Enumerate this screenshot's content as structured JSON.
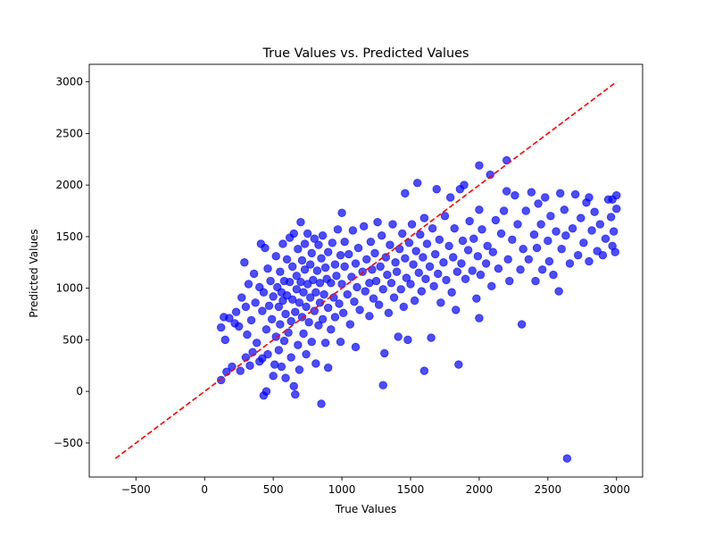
{
  "chart_data": {
    "type": "scatter",
    "title": "True Values vs. Predicted Values",
    "xlabel": "True Values",
    "ylabel": "Predicted Values",
    "xlim": [
      -840,
      3190
    ],
    "ylim": [
      -830,
      3170
    ],
    "xticks": [
      -500,
      0,
      500,
      1000,
      1500,
      2000,
      2500,
      3000
    ],
    "yticks": [
      -500,
      0,
      500,
      1000,
      1500,
      2000,
      2500,
      3000
    ],
    "xtick_labels": [
      "−500",
      "0",
      "500",
      "1000",
      "1500",
      "2000",
      "2500",
      "3000"
    ],
    "ytick_labels": [
      "−500",
      "0",
      "500",
      "1000",
      "1500",
      "2000",
      "2500",
      "3000"
    ],
    "grid": false,
    "point_color": "#0000ff",
    "point_opacity": 0.7,
    "reference_line": {
      "x": [
        -650,
        3000
      ],
      "y": [
        -650,
        3000
      ],
      "color": "#ff0000",
      "style": "dashed"
    },
    "series": [
      {
        "values": [
          [
            120,
            620
          ],
          [
            140,
            720
          ],
          [
            150,
            500
          ],
          [
            120,
            110
          ],
          [
            160,
            190
          ],
          [
            180,
            710
          ],
          [
            200,
            240
          ],
          [
            220,
            660
          ],
          [
            230,
            770
          ],
          [
            250,
            630
          ],
          [
            260,
            200
          ],
          [
            270,
            910
          ],
          [
            290,
            1250
          ],
          [
            300,
            820
          ],
          [
            300,
            330
          ],
          [
            310,
            550
          ],
          [
            320,
            1040
          ],
          [
            330,
            250
          ],
          [
            340,
            690
          ],
          [
            350,
            380
          ],
          [
            360,
            1140
          ],
          [
            370,
            860
          ],
          [
            380,
            470
          ],
          [
            400,
            1010
          ],
          [
            400,
            290
          ],
          [
            410,
            1430
          ],
          [
            420,
            780
          ],
          [
            420,
            320
          ],
          [
            430,
            960
          ],
          [
            430,
            -40
          ],
          [
            440,
            1390
          ],
          [
            450,
            0
          ],
          [
            450,
            600
          ],
          [
            460,
            1190
          ],
          [
            460,
            360
          ],
          [
            470,
            830
          ],
          [
            480,
            1070
          ],
          [
            490,
            700
          ],
          [
            500,
            150
          ],
          [
            500,
            920
          ],
          [
            510,
            260
          ],
          [
            520,
            1310
          ],
          [
            520,
            530
          ],
          [
            530,
            1010
          ],
          [
            540,
            820
          ],
          [
            540,
            400
          ],
          [
            550,
            1160
          ],
          [
            550,
            650
          ],
          [
            560,
            960
          ],
          [
            560,
            240
          ],
          [
            570,
            1430
          ],
          [
            570,
            880
          ],
          [
            580,
            1070
          ],
          [
            580,
            490
          ],
          [
            590,
            130
          ],
          [
            590,
            750
          ],
          [
            600,
            1280
          ],
          [
            600,
            930
          ],
          [
            610,
            570
          ],
          [
            620,
            1490
          ],
          [
            620,
            1060
          ],
          [
            630,
            680
          ],
          [
            630,
            330
          ],
          [
            640,
            1210
          ],
          [
            640,
            890
          ],
          [
            650,
            50
          ],
          [
            650,
            1530
          ],
          [
            660,
            -30
          ],
          [
            660,
            770
          ],
          [
            670,
            1120
          ],
          [
            670,
            990
          ],
          [
            680,
            450
          ],
          [
            680,
            1380
          ],
          [
            690,
            860
          ],
          [
            690,
            210
          ],
          [
            700,
            1060
          ],
          [
            700,
            1640
          ],
          [
            710,
            720
          ],
          [
            710,
            1270
          ],
          [
            720,
            960
          ],
          [
            720,
            560
          ],
          [
            730,
            1180
          ],
          [
            730,
            1430
          ],
          [
            740,
            820
          ],
          [
            740,
            360
          ],
          [
            750,
            1040
          ],
          [
            750,
            1530
          ],
          [
            760,
            670
          ],
          [
            770,
            1230
          ],
          [
            770,
            910
          ],
          [
            780,
            480
          ],
          [
            780,
            1340
          ],
          [
            790,
            1080
          ],
          [
            800,
            780
          ],
          [
            800,
            1480
          ],
          [
            810,
            270
          ],
          [
            810,
            960
          ],
          [
            820,
            1170
          ],
          [
            830,
            640
          ],
          [
            830,
            1420
          ],
          [
            840,
            1050
          ],
          [
            840,
            860
          ],
          [
            850,
            -120
          ],
          [
            850,
            1290
          ],
          [
            860,
            700
          ],
          [
            860,
            1510
          ],
          [
            870,
            940
          ],
          [
            880,
            1200
          ],
          [
            880,
            470
          ],
          [
            890,
            1090
          ],
          [
            900,
            810
          ],
          [
            900,
            1350
          ],
          [
            900,
            230
          ],
          [
            920,
            1050
          ],
          [
            920,
            600
          ],
          [
            930,
            1440
          ],
          [
            940,
            910
          ],
          [
            950,
            1230
          ],
          [
            950,
            720
          ],
          [
            960,
            1120
          ],
          [
            970,
            1570
          ],
          [
            980,
            850
          ],
          [
            990,
            1320
          ],
          [
            990,
            480
          ],
          [
            1000,
            1040
          ],
          [
            1000,
            1730
          ],
          [
            1010,
            760
          ],
          [
            1020,
            1210
          ],
          [
            1020,
            1450
          ],
          [
            1040,
            940
          ],
          [
            1050,
            1330
          ],
          [
            1060,
            650
          ],
          [
            1070,
            1110
          ],
          [
            1080,
            1560
          ],
          [
            1090,
            870
          ],
          [
            1100,
            1240
          ],
          [
            1100,
            430
          ],
          [
            1110,
            1010
          ],
          [
            1120,
            1390
          ],
          [
            1130,
            790
          ],
          [
            1150,
            1160
          ],
          [
            1160,
            1600
          ],
          [
            1170,
            970
          ],
          [
            1180,
            1280
          ],
          [
            1200,
            730
          ],
          [
            1200,
            1050
          ],
          [
            1210,
            1450
          ],
          [
            1220,
            1180
          ],
          [
            1230,
            900
          ],
          [
            1240,
            1340
          ],
          [
            1250,
            1070
          ],
          [
            1260,
            1640
          ],
          [
            1270,
            840
          ],
          [
            1280,
            1210
          ],
          [
            1290,
            1510
          ],
          [
            1300,
            60
          ],
          [
            1300,
            990
          ],
          [
            1310,
            370
          ],
          [
            1320,
            1300
          ],
          [
            1330,
            1130
          ],
          [
            1340,
            760
          ],
          [
            1350,
            1420
          ],
          [
            1360,
            1050
          ],
          [
            1370,
            1620
          ],
          [
            1380,
            910
          ],
          [
            1390,
            1250
          ],
          [
            1400,
            1160
          ],
          [
            1410,
            530
          ],
          [
            1420,
            1380
          ],
          [
            1430,
            990
          ],
          [
            1440,
            1530
          ],
          [
            1450,
            820
          ],
          [
            1460,
            1290
          ],
          [
            1460,
            1920
          ],
          [
            1470,
            1100
          ],
          [
            1480,
            500
          ],
          [
            1490,
            1440
          ],
          [
            1500,
            1040
          ],
          [
            1510,
            1620
          ],
          [
            1520,
            1230
          ],
          [
            1530,
            880
          ],
          [
            1540,
            1360
          ],
          [
            1550,
            2020
          ],
          [
            1560,
            1150
          ],
          [
            1570,
            1520
          ],
          [
            1580,
            970
          ],
          [
            1590,
            1300
          ],
          [
            1600,
            200
          ],
          [
            1600,
            1680
          ],
          [
            1610,
            1090
          ],
          [
            1620,
            1430
          ],
          [
            1640,
            1210
          ],
          [
            1650,
            520
          ],
          [
            1660,
            1580
          ],
          [
            1670,
            1020
          ],
          [
            1680,
            1330
          ],
          [
            1690,
            1960
          ],
          [
            1700,
            1140
          ],
          [
            1710,
            1470
          ],
          [
            1720,
            860
          ],
          [
            1740,
            1250
          ],
          [
            1750,
            1700
          ],
          [
            1760,
            1080
          ],
          [
            1780,
            1410
          ],
          [
            1790,
            1880
          ],
          [
            1800,
            960
          ],
          [
            1810,
            1300
          ],
          [
            1820,
            1580
          ],
          [
            1830,
            790
          ],
          [
            1840,
            1160
          ],
          [
            1850,
            260
          ],
          [
            1860,
            1960
          ],
          [
            1870,
            1240
          ],
          [
            1880,
            1460
          ],
          [
            1890,
            2000
          ],
          [
            1900,
            1090
          ],
          [
            1920,
            1370
          ],
          [
            1930,
            1650
          ],
          [
            1950,
            1170
          ],
          [
            1960,
            1480
          ],
          [
            1980,
            900
          ],
          [
            1990,
            1310
          ],
          [
            2000,
            1760
          ],
          [
            2000,
            2190
          ],
          [
            2000,
            710
          ],
          [
            2010,
            1130
          ],
          [
            2020,
            1570
          ],
          [
            2050,
            1240
          ],
          [
            2060,
            1410
          ],
          [
            2080,
            2100
          ],
          [
            2090,
            1020
          ],
          [
            2100,
            1350
          ],
          [
            2120,
            1660
          ],
          [
            2140,
            1190
          ],
          [
            2160,
            1530
          ],
          [
            2180,
            1750
          ],
          [
            2200,
            1940
          ],
          [
            2200,
            2240
          ],
          [
            2210,
            1280
          ],
          [
            2220,
            1070
          ],
          [
            2240,
            1470
          ],
          [
            2260,
            1900
          ],
          [
            2280,
            1620
          ],
          [
            2300,
            1180
          ],
          [
            2310,
            650
          ],
          [
            2320,
            1380
          ],
          [
            2340,
            1750
          ],
          [
            2360,
            1280
          ],
          [
            2380,
            1930
          ],
          [
            2400,
            1520
          ],
          [
            2410,
            1070
          ],
          [
            2420,
            1390
          ],
          [
            2430,
            1820
          ],
          [
            2450,
            1620
          ],
          [
            2460,
            1180
          ],
          [
            2480,
            1880
          ],
          [
            2500,
            1460
          ],
          [
            2510,
            1260
          ],
          [
            2520,
            1700
          ],
          [
            2540,
            1130
          ],
          [
            2560,
            1550
          ],
          [
            2580,
            970
          ],
          [
            2590,
            1920
          ],
          [
            2600,
            1380
          ],
          [
            2620,
            1760
          ],
          [
            2630,
            1510
          ],
          [
            2640,
            -650
          ],
          [
            2660,
            1240
          ],
          [
            2680,
            1580
          ],
          [
            2700,
            1910
          ],
          [
            2720,
            1320
          ],
          [
            2740,
            1680
          ],
          [
            2760,
            1440
          ],
          [
            2780,
            1830
          ],
          [
            2800,
            1260
          ],
          [
            2820,
            1560
          ],
          [
            2840,
            1740
          ],
          [
            2860,
            1360
          ],
          [
            2880,
            1620
          ],
          [
            2900,
            1320
          ],
          [
            2920,
            1480
          ],
          [
            2940,
            1860
          ],
          [
            2960,
            1690
          ],
          [
            2970,
            1410
          ],
          [
            2980,
            1550
          ],
          [
            2990,
            1350
          ],
          [
            3000,
            1900
          ],
          [
            3000,
            1770
          ],
          [
            2970,
            1860
          ],
          [
            2800,
            1880
          ]
        ]
      }
    ]
  }
}
